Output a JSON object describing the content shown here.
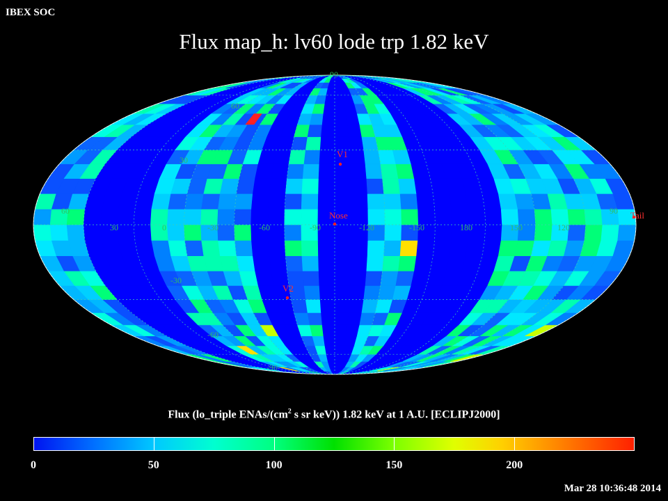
{
  "header": {
    "organization": "IBEX SOC",
    "title": "Flux map_h: lv60 lode trp 1.82 keV"
  },
  "colorbar": {
    "label_pre": "Flux (lo_triple ENAs/(cm",
    "label_sup": "2",
    "label_post": " s sr keV)) 1.82 keV at 1 A.U. [ECLIPJ2000]",
    "min": 0,
    "max": 250,
    "ticks": [
      {
        "value": 0,
        "label": "0"
      },
      {
        "value": 50,
        "label": "50"
      },
      {
        "value": 100,
        "label": "100"
      },
      {
        "value": 150,
        "label": "150"
      },
      {
        "value": 200,
        "label": "200"
      }
    ]
  },
  "footer": {
    "timestamp": "Mar 28 10:36:48 2014"
  },
  "map": {
    "projection": "Mollweide (Aitoff-style ellipse)",
    "center_longitude_label": "-90",
    "lat_labels": [
      "90",
      "60",
      "30",
      "-30",
      "-60",
      "-90"
    ],
    "lon_labels": [
      "60",
      "30",
      "0",
      "-30",
      "-60",
      "-90",
      "-120",
      "-150",
      "180",
      "150",
      "120",
      "90"
    ],
    "markers": [
      {
        "label": "V1",
        "lon": -92,
        "lat": 34
      },
      {
        "label": "Nose",
        "lon": -90,
        "lat": 5
      },
      {
        "label": "V2",
        "lon": -115,
        "lat": -32
      },
      {
        "label": "Tail",
        "lon": 90,
        "lat": 0
      }
    ],
    "colors": {
      "marker": "#ff2020",
      "label": "#ff3030",
      "grid": "#3fd0b0",
      "band": "#0000ff"
    }
  }
}
